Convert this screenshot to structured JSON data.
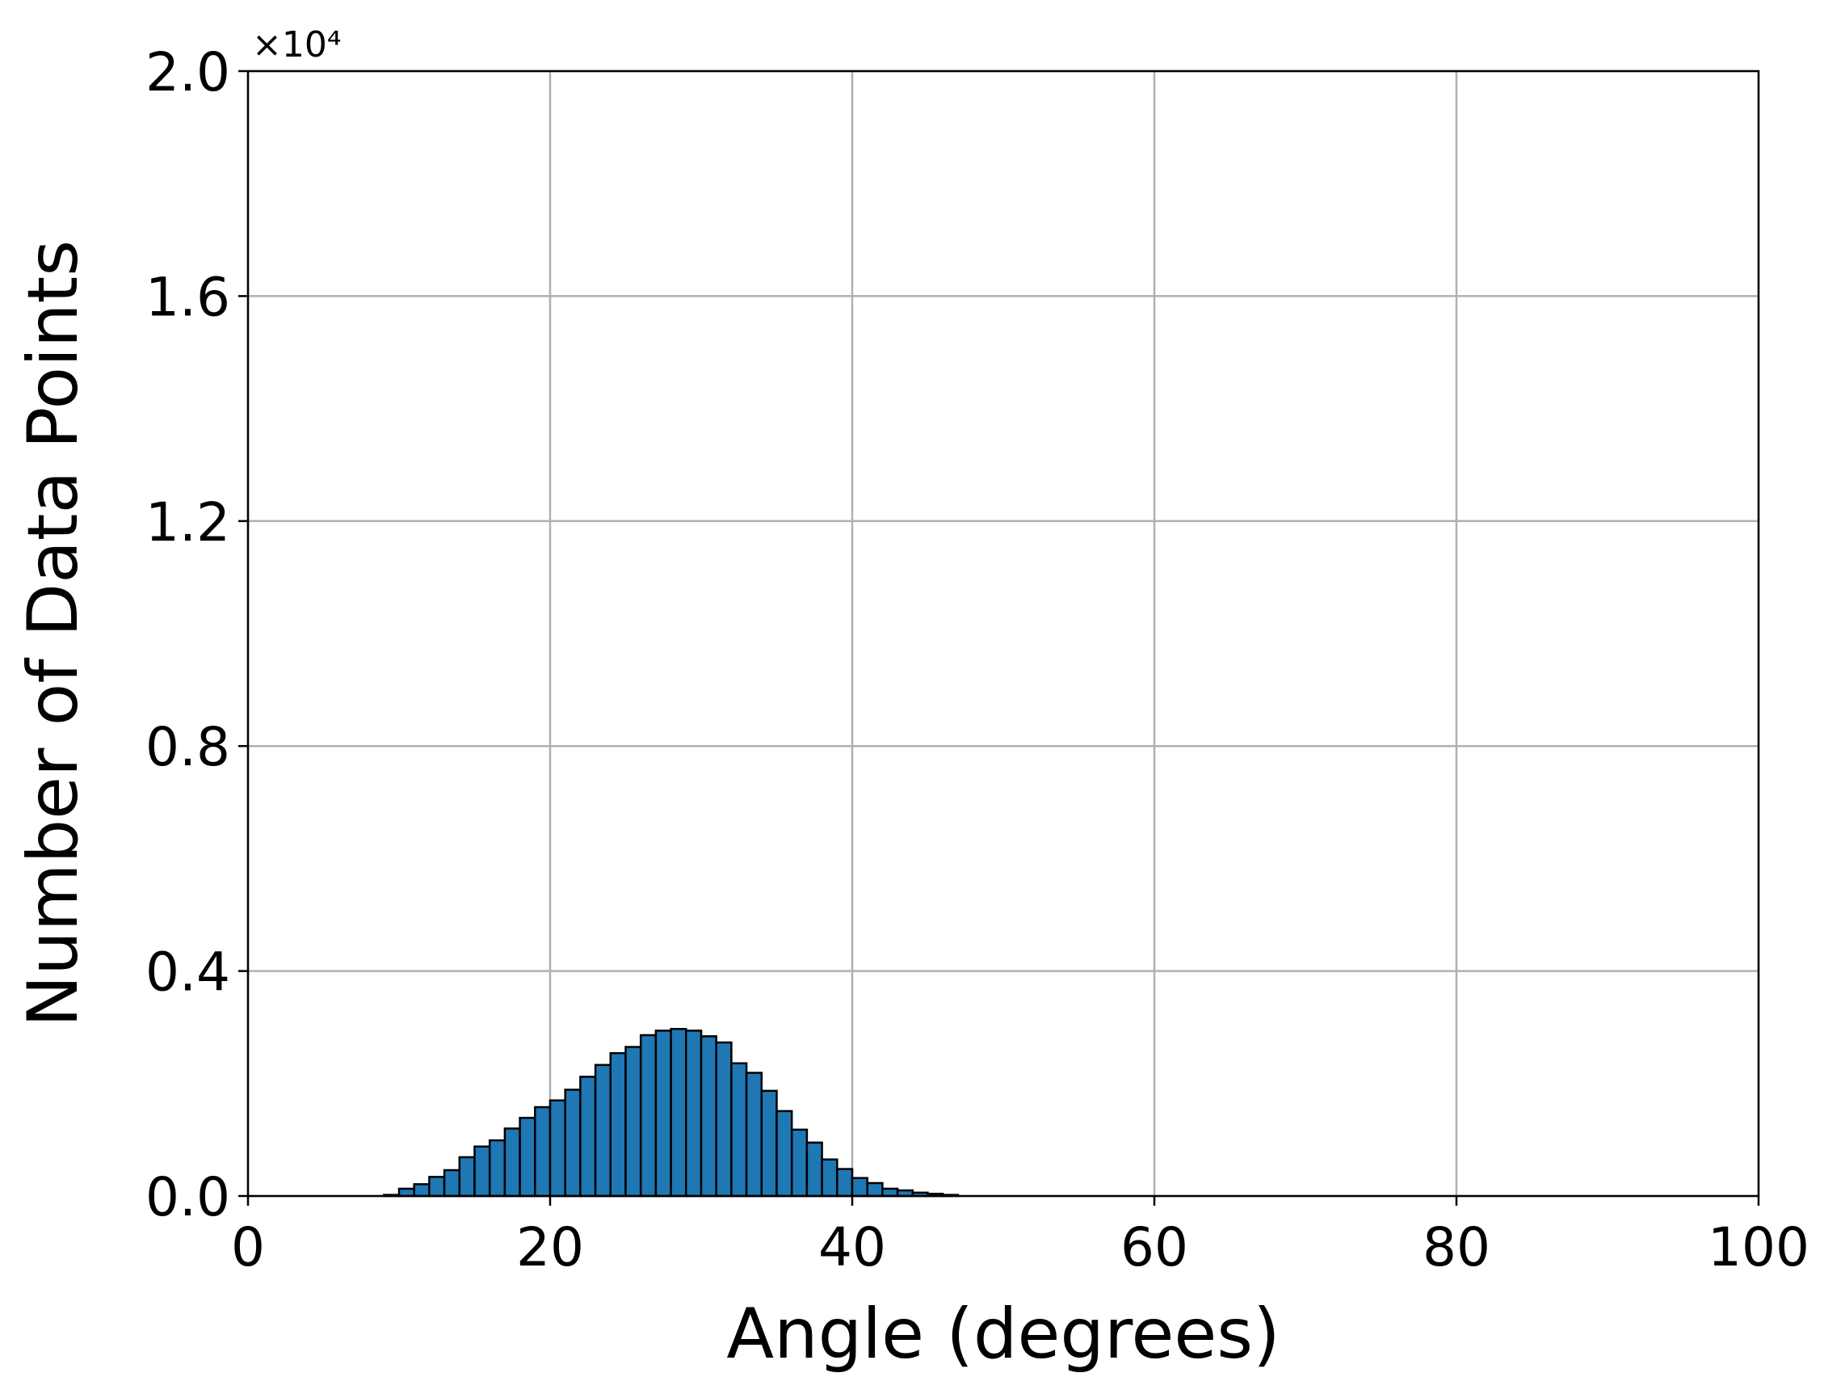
{
  "chart_data": {
    "type": "histogram",
    "xlabel": "Angle (degrees)",
    "ylabel": "Number of Data Points",
    "y_offset_label": "×10⁴",
    "bins": [
      0,
      1,
      2,
      3,
      4,
      5,
      6,
      7,
      8,
      9,
      10,
      11,
      12,
      13,
      14,
      15,
      16,
      17,
      18,
      19,
      20,
      21,
      22,
      23,
      24,
      25,
      26,
      27,
      28,
      29,
      30,
      31,
      32,
      33,
      34,
      35,
      36,
      37,
      38,
      39,
      40,
      41,
      42,
      43,
      44,
      45,
      46,
      47,
      48,
      49,
      50,
      51,
      52,
      53,
      54,
      55,
      56,
      57,
      58,
      59,
      60,
      61,
      62,
      63,
      64,
      65,
      66,
      67,
      68,
      69,
      70,
      71,
      72,
      73,
      74,
      75,
      76,
      77,
      78,
      79,
      80,
      81,
      82,
      83,
      84,
      85,
      86,
      87,
      88,
      89,
      90,
      91,
      92,
      93,
      94,
      95,
      96,
      97,
      98,
      99
    ],
    "values": [
      0,
      0,
      0,
      0,
      0,
      0,
      0,
      0,
      0,
      20,
      130,
      210,
      340,
      460,
      690,
      880,
      990,
      1200,
      1390,
      1580,
      1700,
      1890,
      2120,
      2330,
      2540,
      2650,
      2860,
      2940,
      2970,
      2940,
      2840,
      2730,
      2360,
      2190,
      1870,
      1510,
      1180,
      950,
      650,
      480,
      320,
      230,
      130,
      100,
      60,
      40,
      20,
      0,
      0,
      0,
      0,
      0,
      0,
      0,
      0,
      0,
      0,
      0,
      0,
      0,
      0,
      0,
      0,
      0,
      0,
      0,
      0,
      0,
      0,
      0,
      0,
      0,
      0,
      0,
      0,
      0,
      0,
      0,
      0,
      0,
      0,
      0,
      0,
      0,
      0,
      0,
      0,
      0,
      0,
      0,
      0,
      0,
      0,
      0,
      0,
      0,
      0,
      0,
      0
    ],
    "color": "#1f77b4",
    "edgecolor": "#000000",
    "xlim": [
      0,
      100
    ],
    "xticks": [
      0,
      20,
      40,
      60,
      80,
      100
    ],
    "ylim": [
      0,
      20000
    ],
    "yticks": [
      {
        "value": 0,
        "label": "0.0"
      },
      {
        "value": 4000,
        "label": "0.4"
      },
      {
        "value": 8000,
        "label": "0.8"
      },
      {
        "value": 12000,
        "label": "1.2"
      },
      {
        "value": 16000,
        "label": "1.6"
      },
      {
        "value": 20000,
        "label": "2.0"
      }
    ],
    "grid": true
  }
}
